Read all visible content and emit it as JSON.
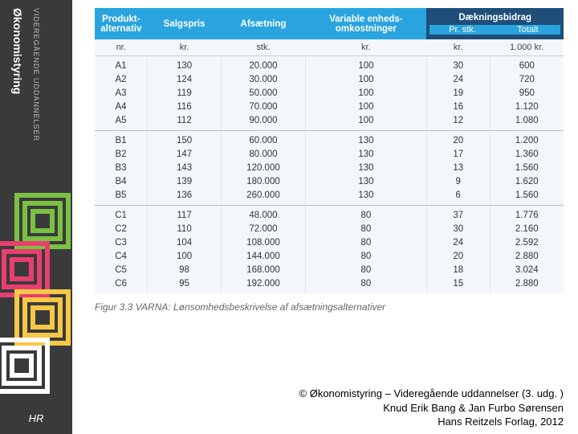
{
  "sidebar": {
    "title": "Økonomistyring",
    "subtitle": "VIDEREGÅENDE UDDANNELSER",
    "logo": "HR"
  },
  "table": {
    "headers1": {
      "produkt": "Produkt-\nalternativ",
      "salgspris": "Salgspris",
      "afsaetning": "Afsætning",
      "variable": "Variable enheds-\nomkostninger",
      "db": "Dækningsbidrag",
      "db_stk": "Pr. stk.",
      "db_tot": "Totalt"
    },
    "headers2": {
      "nr": "nr.",
      "kr1": "kr.",
      "stk": "stk.",
      "kr2": "kr.",
      "kr3": "kr.",
      "tkr": "1.000 kr."
    },
    "groups": [
      {
        "rows": [
          {
            "nr": "A1",
            "pris": "130",
            "afs": "20.000",
            "vo": "100",
            "stk": "30",
            "tot": "600"
          },
          {
            "nr": "A2",
            "pris": "124",
            "afs": "30.000",
            "vo": "100",
            "stk": "24",
            "tot": "720"
          },
          {
            "nr": "A3",
            "pris": "119",
            "afs": "50.000",
            "vo": "100",
            "stk": "19",
            "tot": "950"
          },
          {
            "nr": "A4",
            "pris": "116",
            "afs": "70.000",
            "vo": "100",
            "stk": "16",
            "tot": "1.120"
          },
          {
            "nr": "A5",
            "pris": "112",
            "afs": "90.000",
            "vo": "100",
            "stk": "12",
            "tot": "1.080"
          }
        ]
      },
      {
        "rows": [
          {
            "nr": "B1",
            "pris": "150",
            "afs": "60.000",
            "vo": "130",
            "stk": "20",
            "tot": "1.200"
          },
          {
            "nr": "B2",
            "pris": "147",
            "afs": "80.000",
            "vo": "130",
            "stk": "17",
            "tot": "1.360"
          },
          {
            "nr": "B3",
            "pris": "143",
            "afs": "120.000",
            "vo": "130",
            "stk": "13",
            "tot": "1.560"
          },
          {
            "nr": "B4",
            "pris": "139",
            "afs": "180.000",
            "vo": "130",
            "stk": "9",
            "tot": "1.620"
          },
          {
            "nr": "B5",
            "pris": "136",
            "afs": "260.000",
            "vo": "130",
            "stk": "6",
            "tot": "1.560"
          }
        ]
      },
      {
        "rows": [
          {
            "nr": "C1",
            "pris": "117",
            "afs": "48.000",
            "vo": "80",
            "stk": "37",
            "tot": "1.776"
          },
          {
            "nr": "C2",
            "pris": "110",
            "afs": "72.000",
            "vo": "80",
            "stk": "30",
            "tot": "2.160"
          },
          {
            "nr": "C3",
            "pris": "104",
            "afs": "108.000",
            "vo": "80",
            "stk": "24",
            "tot": "2.592"
          },
          {
            "nr": "C4",
            "pris": "100",
            "afs": "144.000",
            "vo": "80",
            "stk": "20",
            "tot": "2.880"
          },
          {
            "nr": "C5",
            "pris": "98",
            "afs": "168.000",
            "vo": "80",
            "stk": "18",
            "tot": "3.024"
          },
          {
            "nr": "C6",
            "pris": "95",
            "afs": "192.000",
            "vo": "80",
            "stk": "15",
            "tot": "2.880"
          }
        ]
      }
    ]
  },
  "caption": "Figur 3.3 VARNA: Lønsomhedsbeskrivelse af afsætningsalternativer",
  "footer": {
    "line1": "© Økonomistyring – Videregående uddannelser (3. udg. )",
    "line2": "Knud Erik Bang & Jan Furbo Sørensen",
    "line3": "Hans Reitzels Forlag, 2012"
  }
}
